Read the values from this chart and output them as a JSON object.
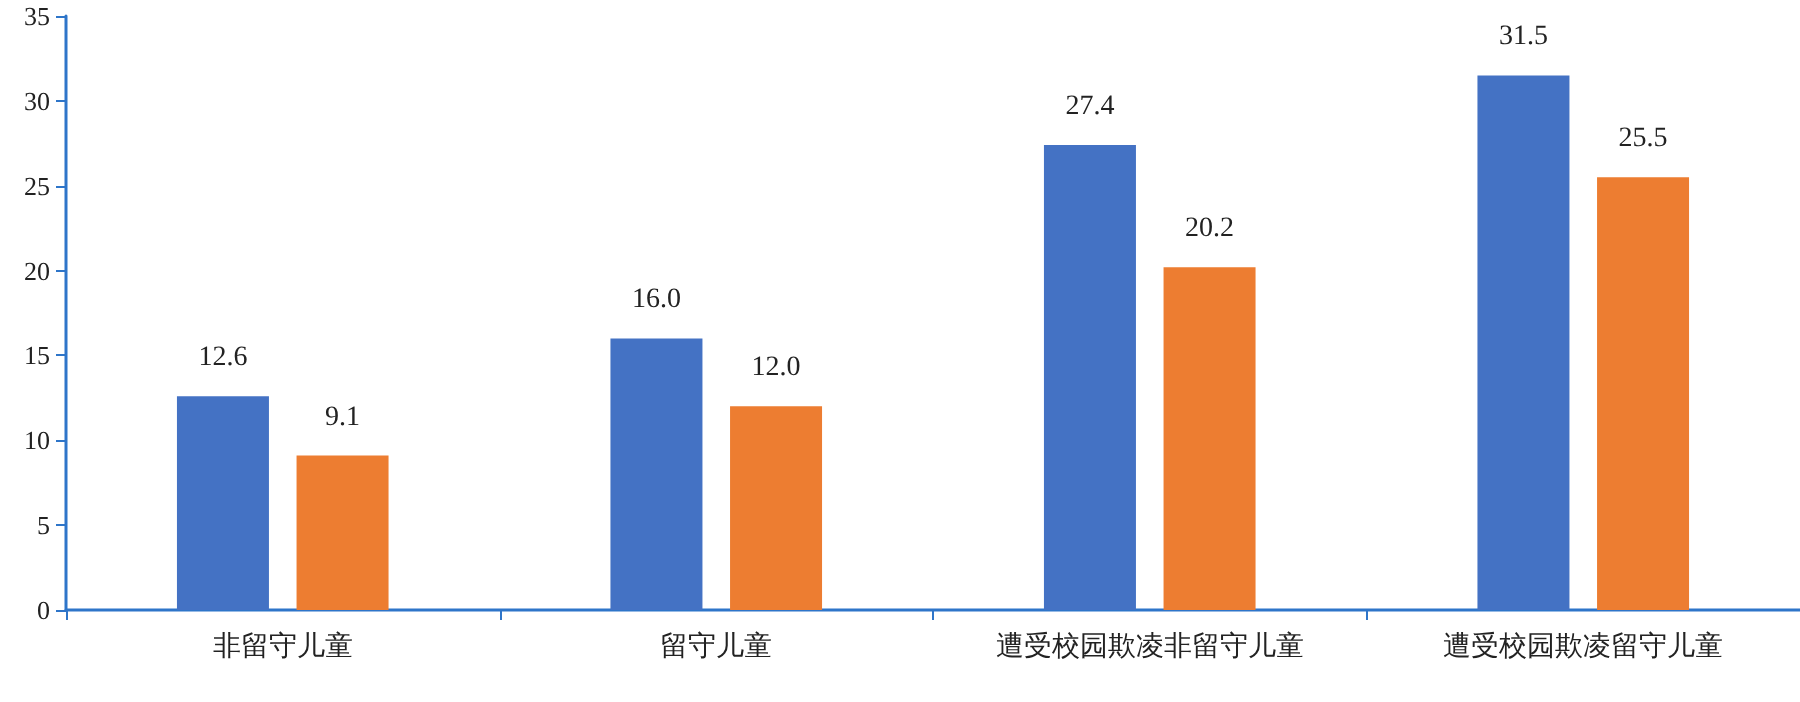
{
  "chart_data": {
    "type": "bar",
    "categories": [
      "非留守儿童",
      "留守儿童",
      "遭受校园欺凌非留守儿童",
      "遭受校园欺凌留守儿童"
    ],
    "series": [
      {
        "color": "#4472c4",
        "values": [
          12.6,
          16.0,
          27.4,
          31.5
        ],
        "value_labels": [
          "12.6",
          "16.0",
          "27.4",
          "31.5"
        ]
      },
      {
        "color": "#ed7d31",
        "values": [
          9.1,
          12.0,
          20.2,
          25.5
        ],
        "value_labels": [
          "9.1",
          "12.0",
          "20.2",
          "25.5"
        ]
      }
    ],
    "ylim": [
      0,
      35
    ],
    "yticks": [
      0,
      5,
      10,
      15,
      20,
      25,
      30,
      35
    ],
    "grid": false
  }
}
